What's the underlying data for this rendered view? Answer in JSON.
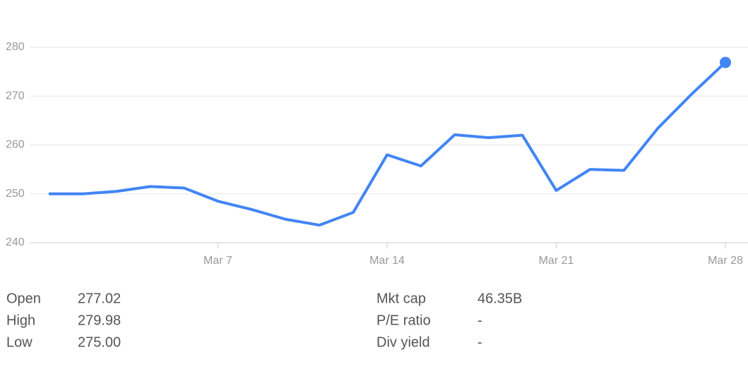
{
  "chart_data": {
    "type": "line",
    "categories": [
      null,
      null,
      null,
      null,
      null,
      "Mar 7",
      null,
      null,
      null,
      null,
      "Mar 14",
      null,
      null,
      null,
      null,
      "Mar 21",
      null,
      null,
      null,
      null,
      "Mar 28"
    ],
    "series": [
      {
        "color": "#4285f4",
        "values": [
          250.0,
          250.0,
          250.5,
          251.5,
          251.2,
          248.5,
          246.8,
          244.8,
          243.6,
          246.2,
          258.0,
          255.7,
          262.1,
          261.5,
          262.0,
          250.7,
          255.0,
          254.8,
          263.4,
          270.4,
          276.9
        ]
      }
    ],
    "ylim": [
      240,
      280
    ],
    "yticks": [
      240,
      250,
      260,
      270,
      280
    ],
    "grid": true
  },
  "stats": {
    "left": [
      {
        "label": "Open",
        "value": "277.02"
      },
      {
        "label": "High",
        "value": "279.98"
      },
      {
        "label": "Low",
        "value": "275.00"
      }
    ],
    "right": [
      {
        "label": "Mkt cap",
        "value": "46.35B"
      },
      {
        "label": "P/E ratio",
        "value": "-"
      },
      {
        "label": "Div yield",
        "value": "-"
      }
    ]
  }
}
